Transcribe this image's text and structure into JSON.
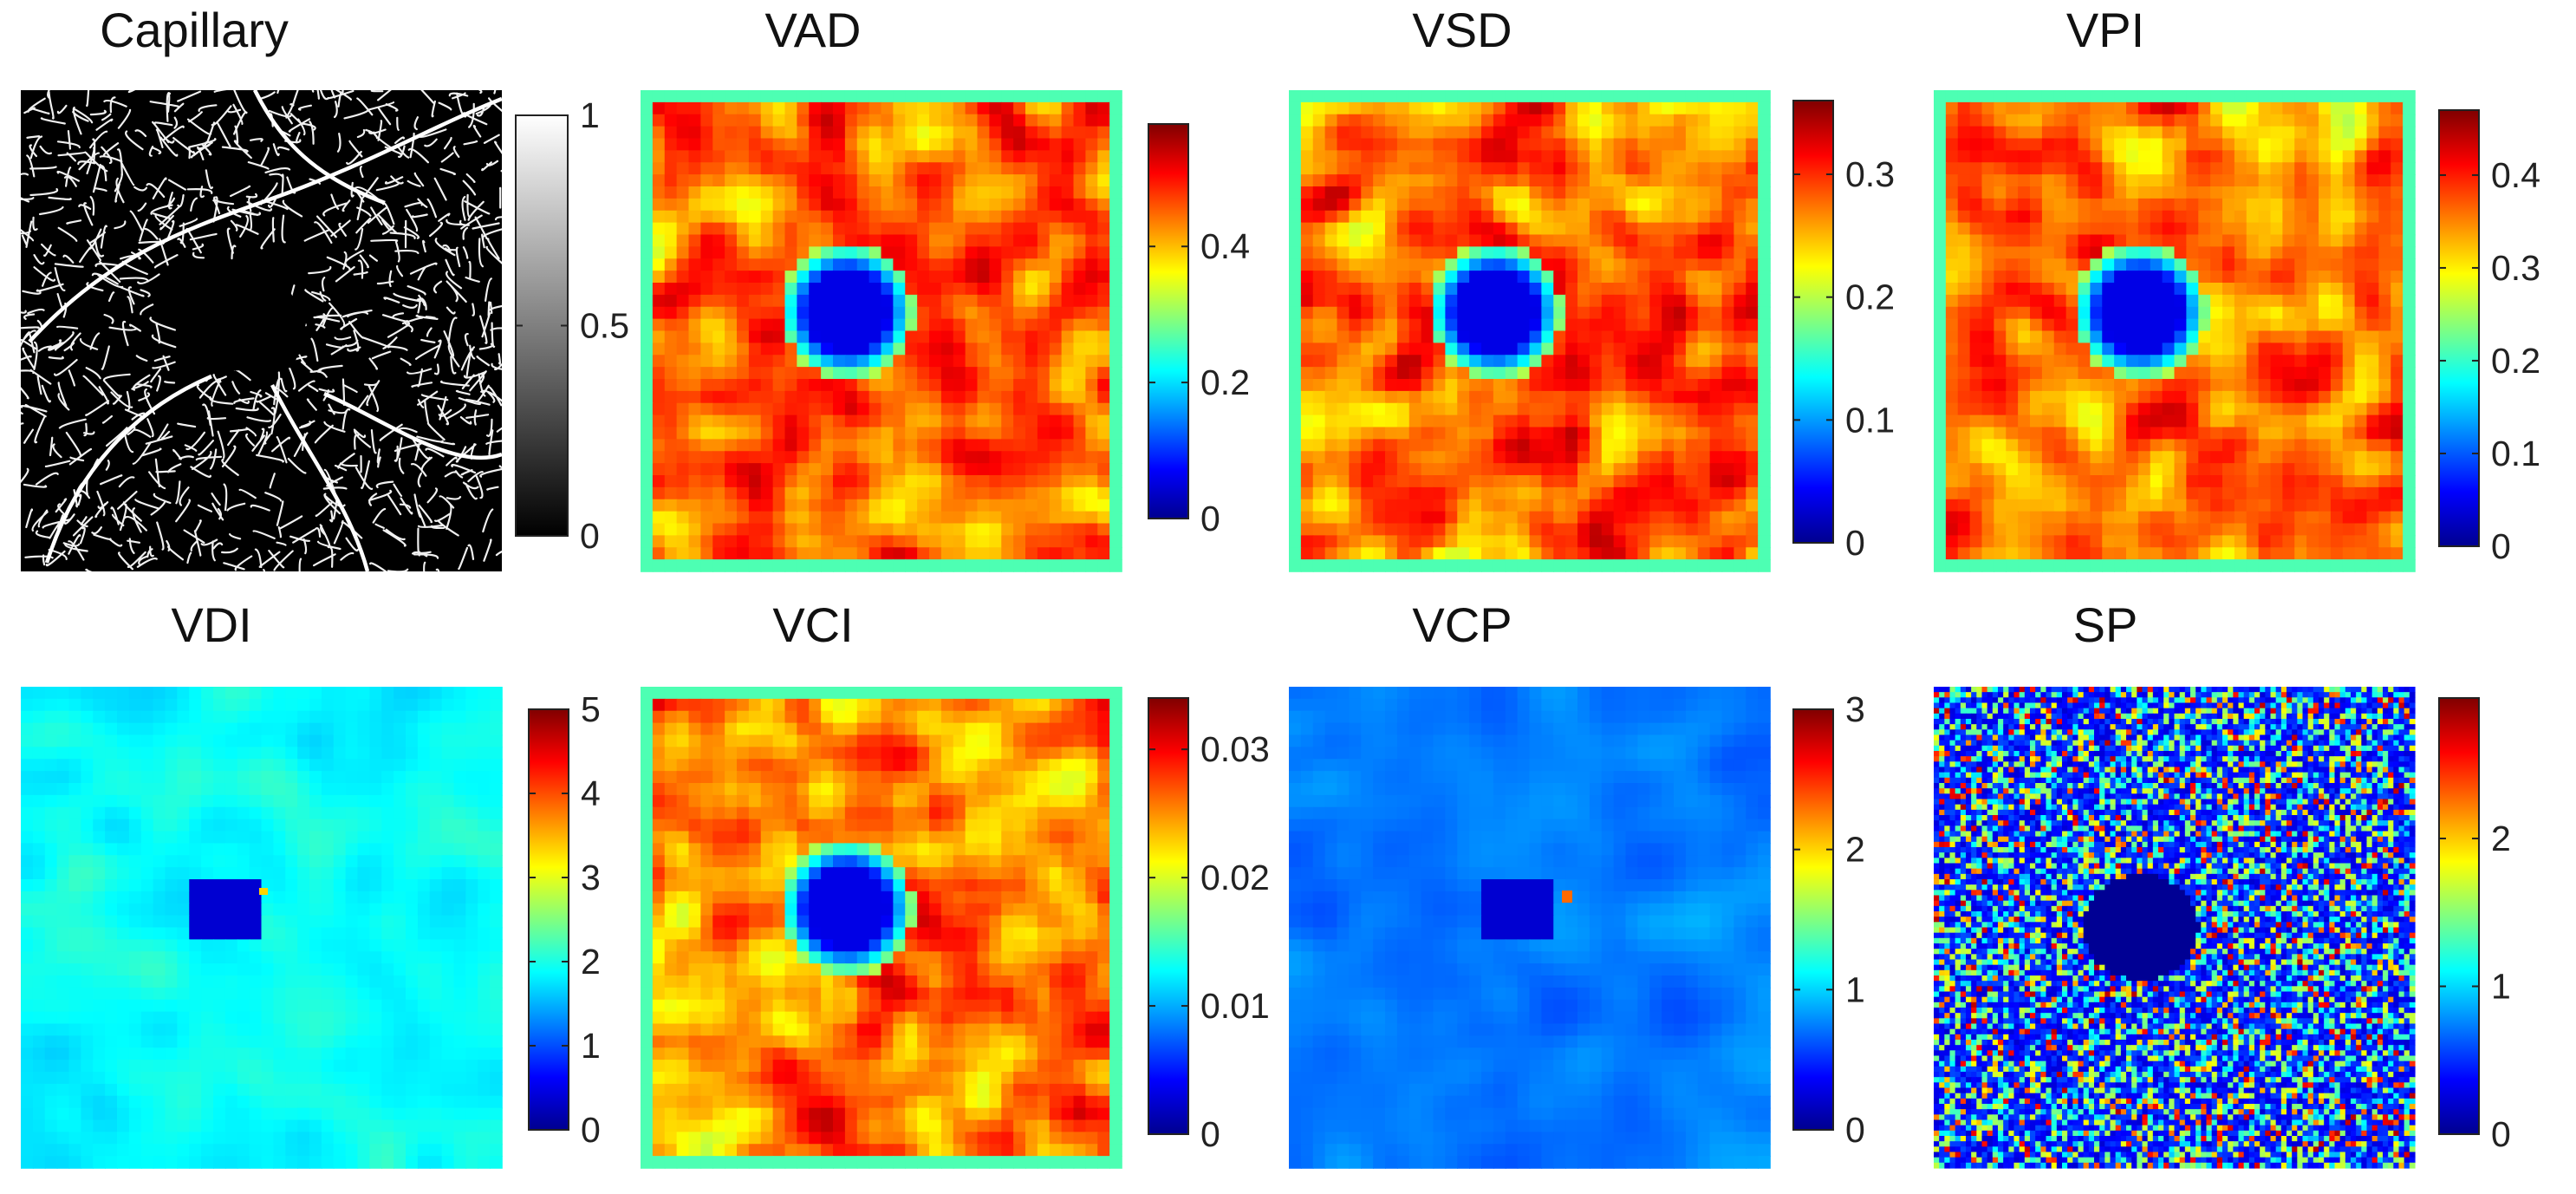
{
  "chart_data": [
    {
      "type": "heatmap",
      "title": "Capillary",
      "colormap": "gray",
      "clim": [
        0,
        1
      ],
      "colorbar_ticks": [
        0,
        0.5,
        1
      ],
      "colorbar_tick_labels": [
        "0",
        "0.5",
        "1"
      ],
      "texture": "vessels"
    },
    {
      "type": "heatmap",
      "title": "VAD",
      "colormap": "jet",
      "clim": [
        0,
        0.58
      ],
      "colorbar_ticks": [
        0,
        0.2,
        0.4
      ],
      "colorbar_tick_labels": [
        "0",
        "0.2",
        "0.4"
      ],
      "texture": "density"
    },
    {
      "type": "heatmap",
      "title": "VSD",
      "colormap": "jet",
      "clim": [
        0,
        0.36
      ],
      "colorbar_ticks": [
        0,
        0.1,
        0.2,
        0.3
      ],
      "colorbar_tick_labels": [
        "0",
        "0.1",
        "0.2",
        "0.3"
      ],
      "texture": "density"
    },
    {
      "type": "heatmap",
      "title": "VPI",
      "colormap": "jet",
      "clim": [
        0,
        0.47
      ],
      "colorbar_ticks": [
        0,
        0.1,
        0.2,
        0.3,
        0.4
      ],
      "colorbar_tick_labels": [
        "0",
        "0.1",
        "0.2",
        "0.3",
        "0.4"
      ],
      "texture": "density"
    },
    {
      "type": "heatmap",
      "title": "VDI",
      "colormap": "jet",
      "clim": [
        0,
        5
      ],
      "colorbar_ticks": [
        0,
        1,
        2,
        3,
        4,
        5
      ],
      "colorbar_tick_labels": [
        "0",
        "1",
        "2",
        "3",
        "4",
        "5"
      ],
      "texture": "diameter"
    },
    {
      "type": "heatmap",
      "title": "VCI",
      "colormap": "jet",
      "clim": [
        0,
        0.034
      ],
      "colorbar_ticks": [
        0,
        0.01,
        0.02,
        0.03
      ],
      "colorbar_tick_labels": [
        "0",
        "0.01",
        "0.02",
        "0.03"
      ],
      "texture": "density"
    },
    {
      "type": "heatmap",
      "title": "VCP",
      "colormap": "jet",
      "clim": [
        0,
        3
      ],
      "colorbar_ticks": [
        0,
        1,
        2,
        3
      ],
      "colorbar_tick_labels": [
        "0",
        "1",
        "2",
        "3"
      ],
      "texture": "low"
    },
    {
      "type": "heatmap",
      "title": "SP",
      "colormap": "jet",
      "clim": [
        0,
        2.95
      ],
      "colorbar_ticks": [
        0,
        1,
        2
      ],
      "colorbar_tick_labels": [
        "0",
        "1",
        "2"
      ],
      "texture": "noise"
    }
  ]
}
